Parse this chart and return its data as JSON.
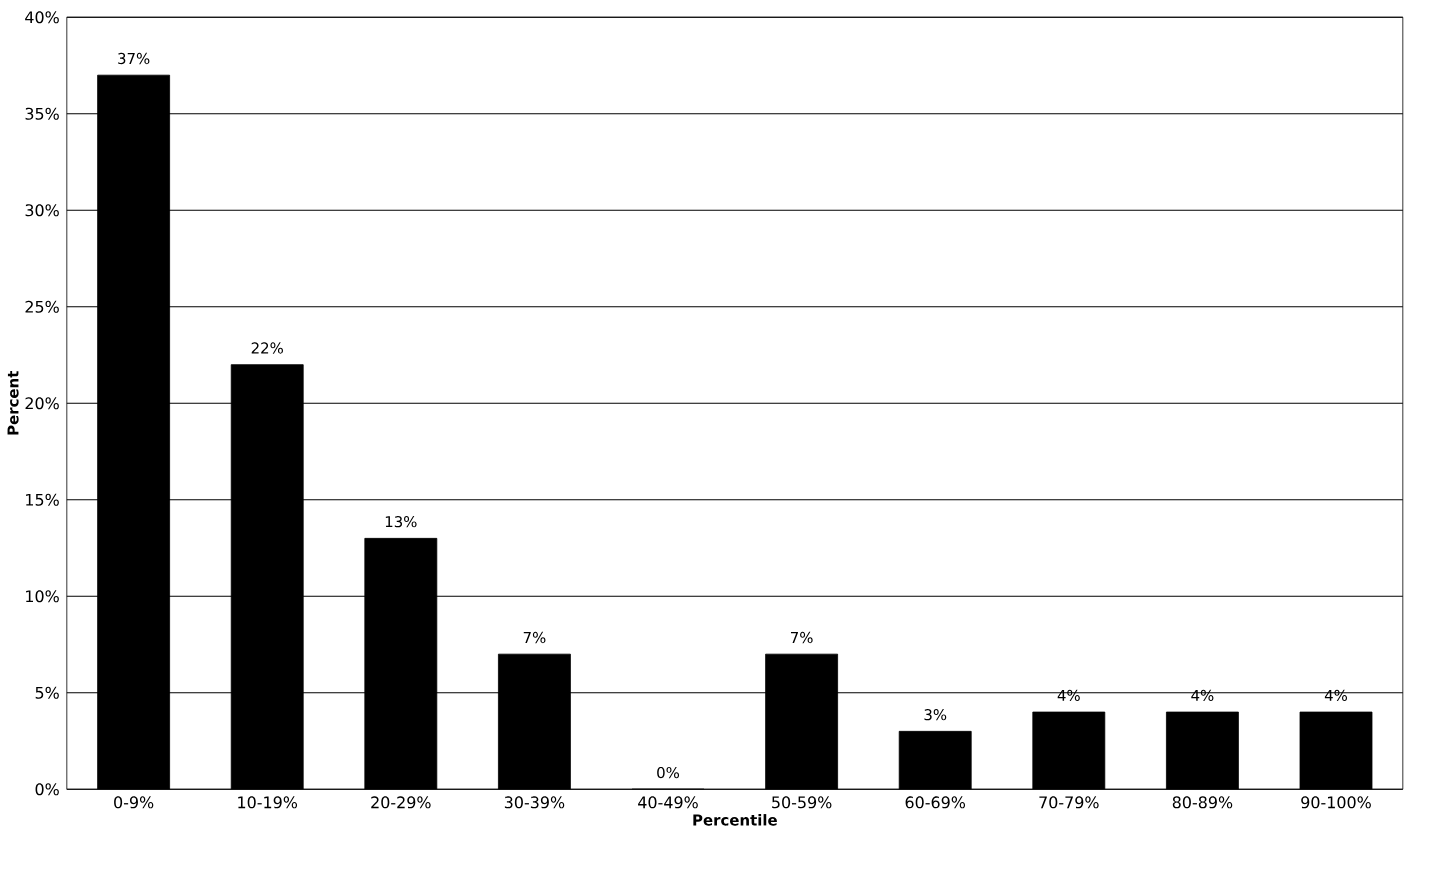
{
  "chart_data": {
    "type": "bar",
    "xlabel": "Percentile",
    "ylabel": "Percent",
    "categories": [
      "0-9%",
      "10-19%",
      "20-29%",
      "30-39%",
      "40-49%",
      "50-59%",
      "60-69%",
      "70-79%",
      "80-89%",
      "90-100%"
    ],
    "values": [
      37,
      22,
      13,
      7,
      0,
      7,
      3,
      4,
      4,
      4
    ],
    "value_labels": [
      "37%",
      "22%",
      "13%",
      "7%",
      "0%",
      "7%",
      "3%",
      "4%",
      "4%",
      "4%"
    ],
    "color": "#000000",
    "ylim": [
      0,
      40
    ],
    "yticks": [
      {
        "value": 0,
        "label": "0%"
      },
      {
        "value": 5,
        "label": "5%"
      },
      {
        "value": 10,
        "label": "10%"
      },
      {
        "value": 15,
        "label": "15%"
      },
      {
        "value": 20,
        "label": "20%"
      },
      {
        "value": 25,
        "label": "25%"
      },
      {
        "value": 30,
        "label": "30%"
      },
      {
        "value": 35,
        "label": "35%"
      },
      {
        "value": 40,
        "label": "40%"
      }
    ],
    "grid": "y"
  }
}
